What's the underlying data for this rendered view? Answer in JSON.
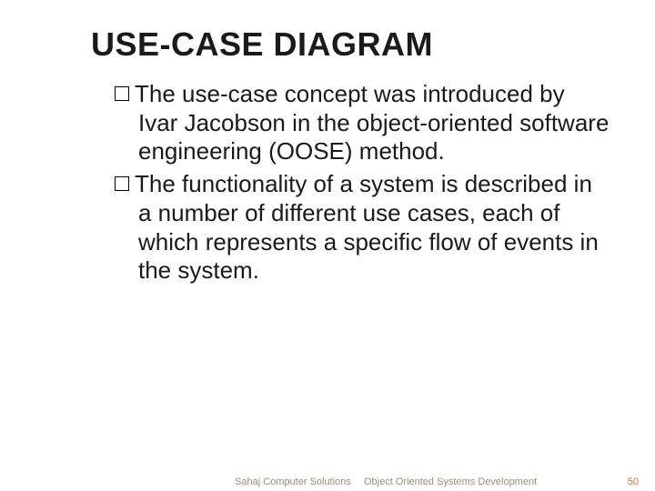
{
  "slide": {
    "title": "USE-CASE DIAGRAM",
    "bullets": [
      "The use-case concept was introduced by Ivar Jacobson in the object-oriented software engineering (OOSE) method.",
      "The functionality of a system is described in a number of different use cases, each of which represents a specific flow of events in the system."
    ]
  },
  "footer": {
    "left": "Sahaj Computer Solutions",
    "center": "Object Oriented Systems Development",
    "page_number": "50"
  },
  "styling": {
    "title_fontsize": 36,
    "body_fontsize": 26,
    "footer_fontsize": 11,
    "title_color": "#1a1a1a",
    "body_color": "#1a1a1a",
    "footer_label_color": "#9a8f73",
    "footer_page_color": "#c07830",
    "background_color": "#ffffff",
    "bullet_marker": "hollow-square"
  }
}
